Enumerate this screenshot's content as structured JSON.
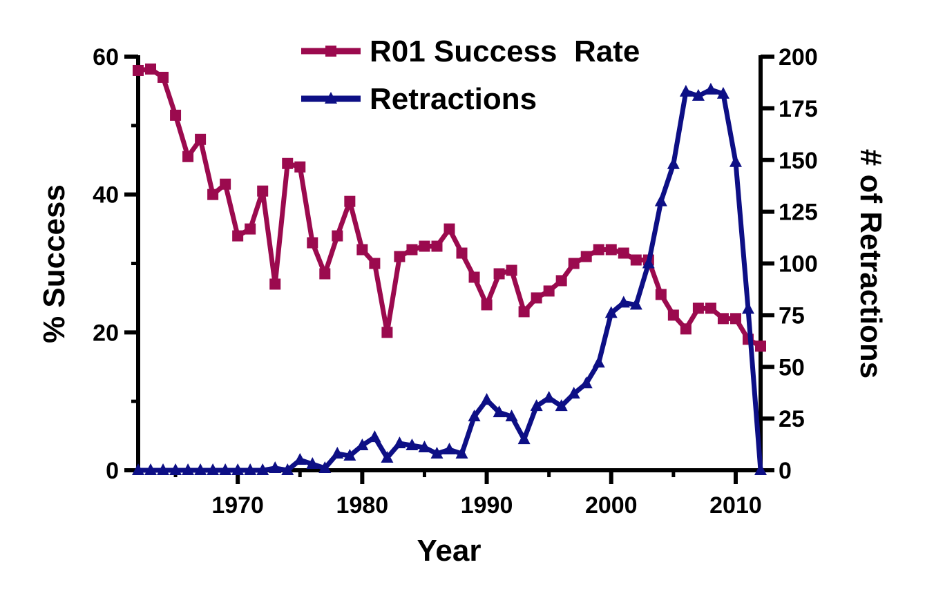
{
  "chart_data": {
    "type": "line",
    "title": "",
    "xlabel": "Year",
    "ylabel_left": "% Success",
    "ylabel_right": "# of Retractions",
    "xlim": [
      1962,
      2012
    ],
    "xticks": [
      1970,
      1980,
      1990,
      2000,
      2010
    ],
    "ylim_left": [
      0,
      60
    ],
    "yticks_left": [
      0,
      20,
      40,
      60
    ],
    "ylim_right": [
      0,
      200
    ],
    "yticks_right": [
      0,
      25,
      50,
      75,
      100,
      125,
      150,
      175,
      200
    ],
    "grid": false,
    "legend_position": "top-center",
    "series": [
      {
        "name": "R01 Success  Rate",
        "axis": "left",
        "color": "#9b0a4e",
        "marker": "square",
        "x": [
          1962,
          1963,
          1964,
          1965,
          1966,
          1967,
          1968,
          1969,
          1970,
          1971,
          1972,
          1973,
          1974,
          1975,
          1976,
          1977,
          1978,
          1979,
          1980,
          1981,
          1982,
          1983,
          1984,
          1985,
          1986,
          1987,
          1988,
          1989,
          1990,
          1991,
          1992,
          1993,
          1994,
          1995,
          1996,
          1997,
          1998,
          1999,
          2000,
          2001,
          2002,
          2003,
          2004,
          2005,
          2006,
          2007,
          2008,
          2009,
          2010,
          2011,
          2012
        ],
        "values": [
          58,
          58.2,
          57,
          51.5,
          45.5,
          48,
          40,
          41.5,
          34,
          35,
          40.5,
          27,
          44.5,
          44,
          33,
          28.5,
          34,
          39,
          32,
          30,
          20,
          31,
          32,
          32.5,
          32.5,
          35,
          31.5,
          28,
          24,
          28.5,
          29,
          23,
          25,
          26,
          27.5,
          30,
          31,
          32,
          32,
          31.5,
          30.5,
          30.5,
          25.5,
          22.5,
          20.5,
          23.5,
          23.5,
          22,
          22,
          19,
          18
        ]
      },
      {
        "name": "Retractions",
        "axis": "right",
        "color": "#0d0f85",
        "marker": "triangle",
        "x": [
          1962,
          1963,
          1964,
          1965,
          1966,
          1967,
          1968,
          1969,
          1970,
          1971,
          1972,
          1973,
          1974,
          1975,
          1976,
          1977,
          1978,
          1979,
          1980,
          1981,
          1982,
          1983,
          1984,
          1985,
          1986,
          1987,
          1988,
          1989,
          1990,
          1991,
          1992,
          1993,
          1994,
          1995,
          1996,
          1997,
          1998,
          1999,
          2000,
          2001,
          2002,
          2003,
          2004,
          2005,
          2006,
          2007,
          2008,
          2009,
          2010,
          2011,
          2012
        ],
        "values": [
          0,
          0,
          0,
          0,
          0,
          0,
          0,
          0,
          0,
          0,
          0,
          1,
          0,
          5,
          3,
          1,
          8,
          7,
          12,
          16,
          6,
          13,
          12,
          11,
          8,
          10,
          8,
          26,
          34,
          28,
          26,
          15,
          31,
          35,
          31,
          37,
          42,
          52,
          76,
          81,
          80,
          100,
          130,
          148,
          183,
          181,
          184,
          182,
          149,
          78,
          0
        ]
      }
    ]
  }
}
